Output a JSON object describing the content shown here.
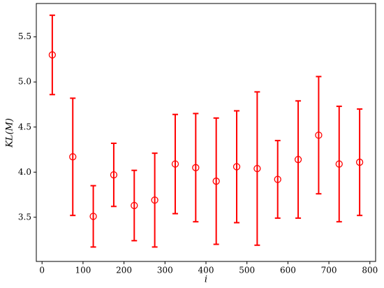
{
  "chart_data": {
    "type": "errorbar",
    "xlabel": "i",
    "ylabel": "KL(M)",
    "x": [
      25,
      75,
      125,
      175,
      225,
      275,
      325,
      375,
      425,
      475,
      525,
      575,
      625,
      675,
      725,
      775
    ],
    "series": [
      {
        "color": "#ff0000",
        "values": [
          5.3,
          4.17,
          3.51,
          3.97,
          3.63,
          3.69,
          4.09,
          4.05,
          3.9,
          4.06,
          4.04,
          3.92,
          4.14,
          4.41,
          4.09,
          4.11
        ],
        "errors": [
          0.44,
          0.65,
          0.34,
          0.35,
          0.39,
          0.52,
          0.55,
          0.6,
          0.7,
          0.62,
          0.85,
          0.43,
          0.65,
          0.65,
          0.64,
          0.59
        ]
      }
    ],
    "xlim": [
      -14,
      814
    ],
    "xticks": [
      0,
      100,
      200,
      300,
      400,
      500,
      600,
      700,
      800
    ],
    "ylim": [
      3.01,
      5.87
    ],
    "yticks": [
      3.5,
      {
        "value": 4.0,
        "label": "4.0"
      },
      4.5,
      {
        "value": 5.0,
        "label": "5.0"
      },
      5.5
    ]
  }
}
